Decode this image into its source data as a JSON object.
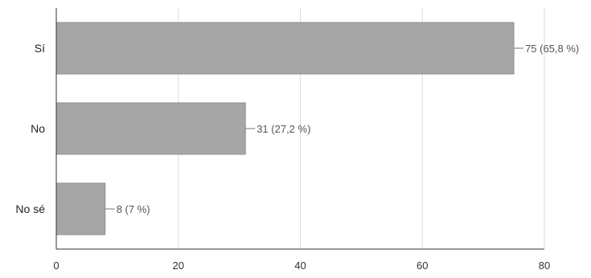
{
  "chart_data": {
    "type": "bar",
    "orientation": "horizontal",
    "categories": [
      "Sí",
      "No",
      "No sé"
    ],
    "values": [
      75,
      31,
      8
    ],
    "data_labels": [
      "75 (65,8 %)",
      "31 (27,2 %)",
      "8 (7 %)"
    ],
    "xlim": [
      0,
      80
    ],
    "x_ticks": [
      0,
      20,
      40,
      60,
      80
    ],
    "x_tick_labels": [
      "0",
      "20",
      "40",
      "60",
      "80"
    ],
    "grid": true,
    "legend": "none",
    "colors": {
      "bar": "#a6a6a6",
      "grid": "#dddddd",
      "axis": "#333333"
    }
  }
}
